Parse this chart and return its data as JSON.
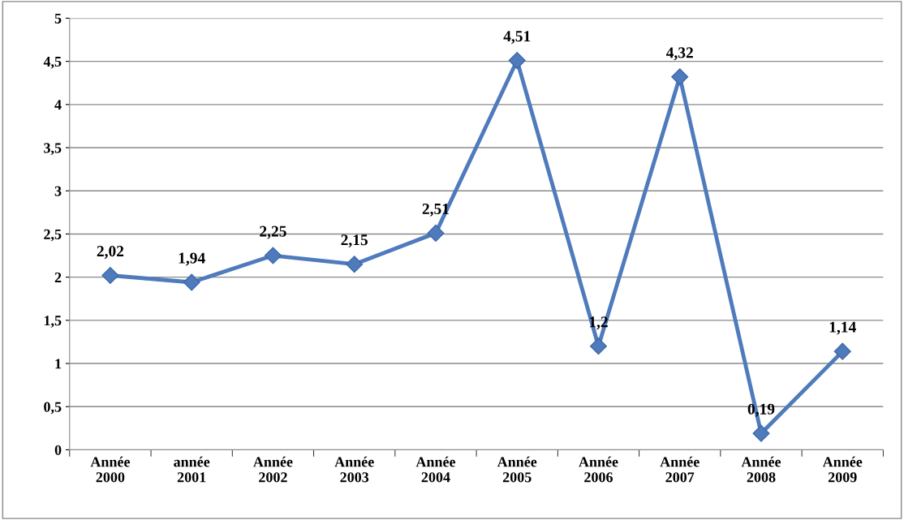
{
  "chart_data": {
    "type": "line",
    "categories": [
      "Année\n2000",
      "année\n2001",
      "Année\n2002",
      "Année\n2003",
      "Année\n2004",
      "Année\n2005",
      "Année\n2006",
      "Année\n2007",
      "Année\n2008",
      "Année\n2009"
    ],
    "series": [
      {
        "color": "#4f7bbd",
        "values": [
          2.02,
          1.94,
          2.25,
          2.15,
          2.51,
          4.51,
          1.2,
          4.32,
          0.19,
          1.14
        ],
        "value_labels": [
          "2,02",
          "1,94",
          "2,25",
          "2,15",
          "2,51",
          "4,51",
          "1,2",
          "4,32",
          "0,19",
          "1,14"
        ]
      }
    ],
    "ylim": [
      0,
      5
    ],
    "yticks": [
      0,
      {
        "value": 0.5,
        "label": "0,5"
      },
      1,
      {
        "value": 1.5,
        "label": "1,5"
      },
      2,
      {
        "value": 2.5,
        "label": "2,5"
      },
      3,
      {
        "value": 3.5,
        "label": "3,5"
      },
      4,
      {
        "value": 4.5,
        "label": "4,5"
      },
      5
    ],
    "grid": "y",
    "legend": false,
    "marker": "diamond",
    "line_style": "solid"
  }
}
